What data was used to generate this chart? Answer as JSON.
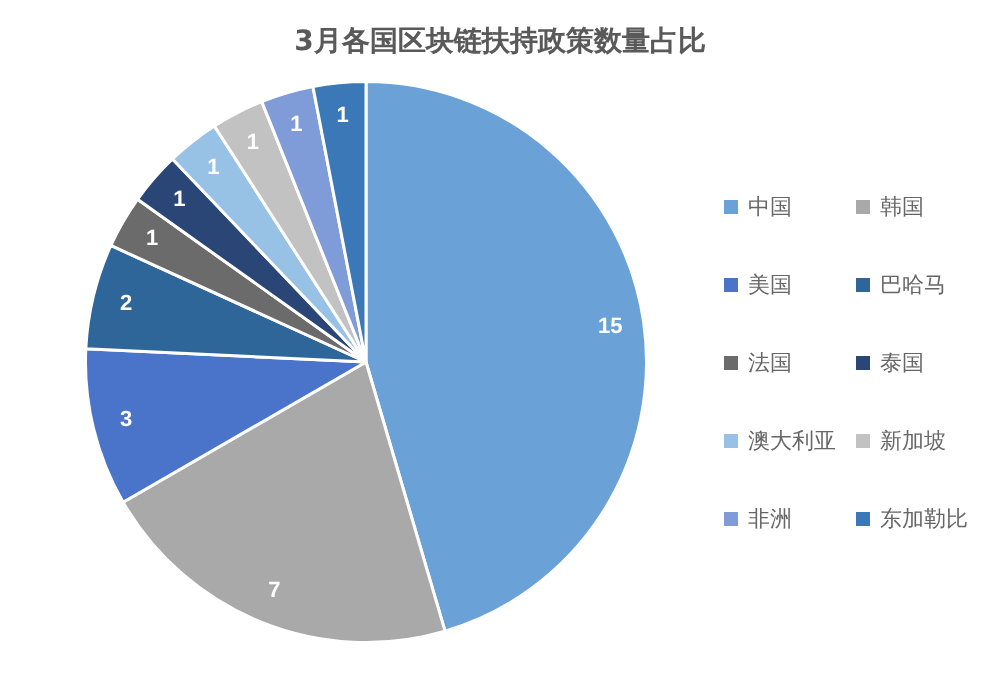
{
  "chart_data": {
    "type": "pie",
    "title": "3月各国区块链扶持政策数量占比",
    "categories": [
      "中国",
      "韩国",
      "美国",
      "巴哈马",
      "法国",
      "泰国",
      "澳大利亚",
      "新加坡",
      "非洲",
      "东加勒比"
    ],
    "values": [
      15,
      7,
      3,
      2,
      1,
      1,
      1,
      1,
      1,
      1
    ],
    "colors": [
      "#6aa2d8",
      "#a9a9a9",
      "#4a74c9",
      "#2f6699",
      "#6b6b6b",
      "#2a4677",
      "#98c1e6",
      "#c2c2c2",
      "#7f9cd9",
      "#3a78b8"
    ],
    "data_labels": true,
    "legend": "right"
  }
}
